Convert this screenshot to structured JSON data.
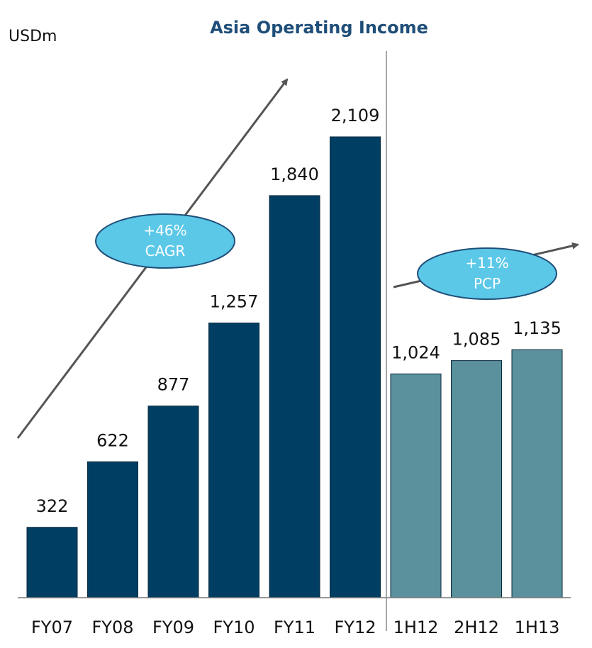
{
  "chart_data": {
    "type": "bar",
    "title": "Asia Operating Income",
    "unit_label": "USDm",
    "categories": [
      "FY07",
      "FY08",
      "FY09",
      "FY10",
      "FY11",
      "FY12",
      "1H12",
      "2H12",
      "1H13"
    ],
    "values": [
      322,
      622,
      877,
      1257,
      1840,
      2109,
      1024,
      1085,
      1135
    ],
    "value_labels": [
      "322",
      "622",
      "877",
      "1,257",
      "1,840",
      "2,109",
      "1,024",
      "1,085",
      "1,135"
    ],
    "groups": [
      {
        "categories": [
          "FY07",
          "FY08",
          "FY09",
          "FY10",
          "FY11",
          "FY12"
        ],
        "color": "#003f63"
      },
      {
        "categories": [
          "1H12",
          "2H12",
          "1H13"
        ],
        "color": "#5a919c"
      }
    ],
    "ylim": [
      0,
      2109
    ],
    "grid": false,
    "annotations": [
      {
        "lines": [
          "+46%",
          "CAGR"
        ],
        "color": "#5bc8e8",
        "applies_to": "FY07-FY12"
      },
      {
        "lines": [
          "+11%",
          "PCP"
        ],
        "color": "#5bc8e8",
        "applies_to": "1H12-1H13"
      }
    ]
  }
}
